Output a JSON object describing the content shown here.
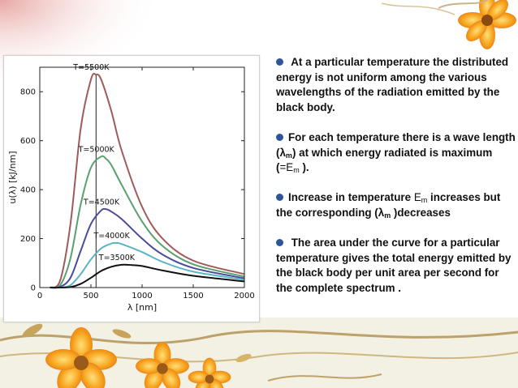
{
  "slide": {
    "bullets": [
      {
        "text": "At a particular temperature  the distributed energy is not uniform among the various wavelengths of the radiation emitted by the black body."
      },
      {
        "text_before": "For each temperature there is a wave length (λ",
        "sub_m": "m",
        "text_mid": ")  at which energy radiated is maximum  (",
        "eq_E": "=E",
        "sub_m2": "m",
        "text_after": " )."
      },
      {
        "text_before": "Increase in temperature ",
        "E": "E",
        "sub_m": "m",
        "text_mid": " increases but the corresponding (λ",
        "sub_m2": "m",
        "text_after": " )decreases"
      },
      {
        "text": "The area under the curve for a particular temperature  gives  the total energy emitted by the black body per unit area per second  for the complete spectrum ."
      }
    ],
    "bullet_color": "#2e5597"
  },
  "chart_data": {
    "type": "line",
    "xlabel": "λ [nm]",
    "ylabel": "u(λ) [kJ/nm]",
    "xlim": [
      0,
      2000
    ],
    "ylim": [
      0,
      900
    ],
    "xticks": [
      0,
      500,
      1000,
      1500,
      2000
    ],
    "yticks": [
      0,
      200,
      400,
      600,
      800
    ],
    "series": [
      {
        "name": "T=5500K",
        "color": "#a05a5a",
        "x": [
          100,
          200,
          300,
          400,
          500,
          550,
          600,
          700,
          800,
          1000,
          1200,
          1500,
          2000
        ],
        "values": [
          0,
          30,
          260,
          650,
          850,
          870,
          850,
          720,
          560,
          330,
          200,
          110,
          55
        ]
      },
      {
        "name": "T=5000K",
        "color": "#5aa06e",
        "x": [
          100,
          200,
          300,
          400,
          500,
          600,
          650,
          700,
          800,
          1000,
          1200,
          1500,
          2000
        ],
        "values": [
          0,
          10,
          120,
          340,
          490,
          535,
          525,
          500,
          420,
          270,
          170,
          95,
          45
        ]
      },
      {
        "name": "T=4500K",
        "color": "#4b4b9b",
        "x": [
          100,
          200,
          300,
          400,
          500,
          600,
          650,
          700,
          800,
          1000,
          1200,
          1500,
          2000
        ],
        "values": [
          0,
          3,
          40,
          150,
          260,
          315,
          320,
          310,
          280,
          200,
          135,
          80,
          38
        ]
      },
      {
        "name": "T=4000K",
        "color": "#5ab4c8",
        "x": [
          100,
          200,
          300,
          400,
          500,
          600,
          700,
          750,
          800,
          1000,
          1200,
          1500,
          2000
        ],
        "values": [
          0,
          0,
          10,
          55,
          115,
          160,
          180,
          182,
          178,
          145,
          105,
          65,
          32
        ]
      },
      {
        "name": "T=3500K",
        "color": "#111111",
        "x": [
          100,
          200,
          300,
          400,
          500,
          600,
          700,
          800,
          900,
          1000,
          1200,
          1500,
          2000
        ],
        "values": [
          0,
          0,
          2,
          15,
          40,
          68,
          85,
          93,
          92,
          88,
          70,
          48,
          25
        ]
      }
    ],
    "peak_marker": {
      "x": 550,
      "from": 0,
      "to": 870
    }
  }
}
